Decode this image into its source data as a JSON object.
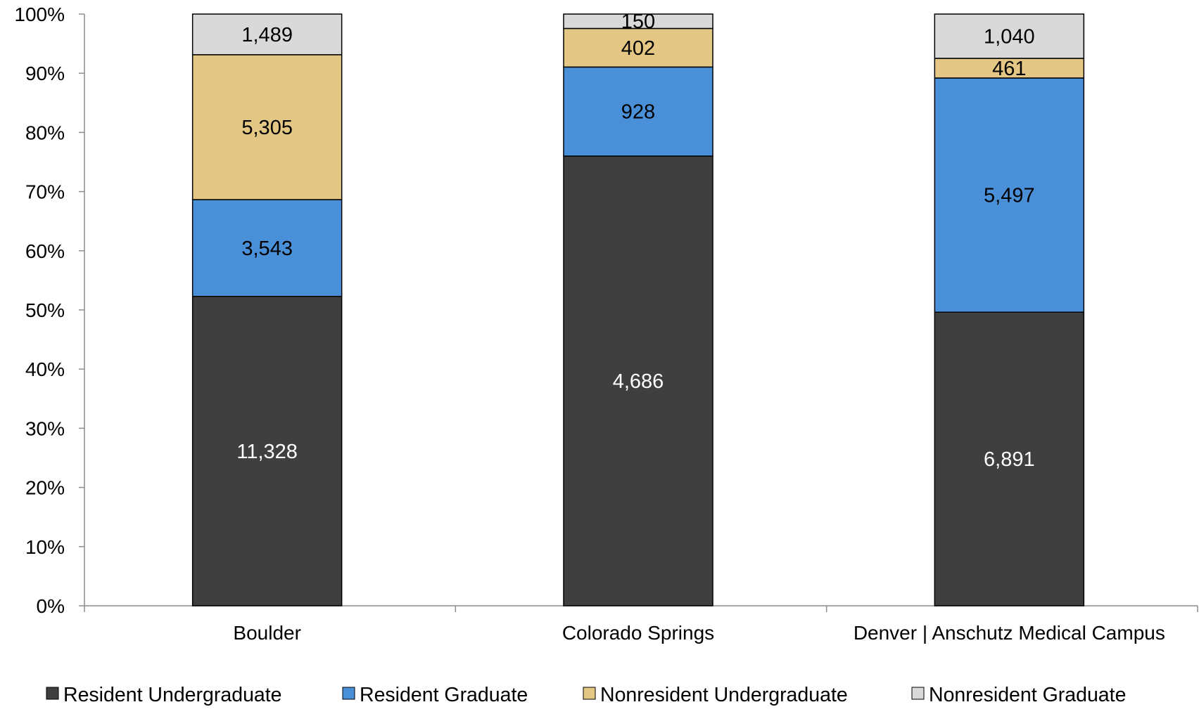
{
  "chart_data": {
    "type": "bar",
    "stacked": true,
    "normalized": true,
    "categories": [
      "Boulder",
      "Colorado Springs",
      "Denver | Anschutz Medical Campus"
    ],
    "series": [
      {
        "name": "Resident Undergraduate",
        "color": "#3f3f3f",
        "label_color": "#ffffff",
        "values": [
          11328,
          4686,
          6891
        ]
      },
      {
        "name": "Resident Graduate",
        "color": "#4a90d9",
        "label_color": "#000000",
        "values": [
          3543,
          928,
          5497
        ]
      },
      {
        "name": "Nonresident Undergraduate",
        "color": "#e4c784",
        "label_color": "#000000",
        "values": [
          5305,
          402,
          461
        ]
      },
      {
        "name": "Nonresident Graduate",
        "color": "#d9d9d9",
        "label_color": "#000000",
        "values": [
          1489,
          150,
          1040
        ]
      }
    ],
    "data_labels": [
      [
        "11,328",
        "4,686",
        "6,891"
      ],
      [
        "3,543",
        "928",
        "5,497"
      ],
      [
        "5,305",
        "402",
        "461"
      ],
      [
        "1,489",
        "150",
        "1,040"
      ]
    ],
    "yticks": [
      "0%",
      "10%",
      "20%",
      "30%",
      "40%",
      "50%",
      "60%",
      "70%",
      "80%",
      "90%",
      "100%"
    ],
    "ylim": [
      0,
      100
    ],
    "grid": false,
    "legend": "bottom"
  }
}
